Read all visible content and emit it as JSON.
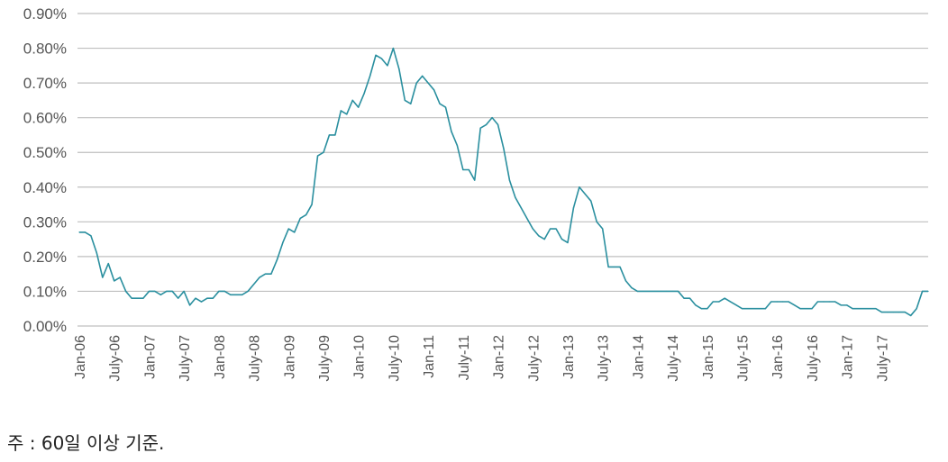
{
  "note": "주 : 60일 이상 기준.",
  "colors": {
    "line": "#2a8f9f",
    "grid": "#bfbfbf",
    "text": "#555555"
  },
  "chart_data": {
    "type": "line",
    "title": "",
    "xlabel": "",
    "ylabel": "",
    "ylim": [
      0,
      0.9
    ],
    "y_unit": "%",
    "y_ticks": [
      "0.00%",
      "0.10%",
      "0.20%",
      "0.30%",
      "0.40%",
      "0.50%",
      "0.60%",
      "0.70%",
      "0.80%",
      "0.90%"
    ],
    "x_ticks": [
      "Jan-06",
      "July-06",
      "Jan-07",
      "July-07",
      "Jan-08",
      "July-08",
      "Jan-09",
      "July-09",
      "Jan-10",
      "July-10",
      "Jan-11",
      "July-11",
      "Jan-12",
      "July-12",
      "Jan-13",
      "July-13",
      "Jan-14",
      "July-14",
      "Jan-15",
      "July-15",
      "Jan-16",
      "July-16",
      "Jan-17",
      "July-17"
    ],
    "grid": true,
    "legend": "none",
    "x_start": "Jan-06",
    "x_frequency": "monthly",
    "series": [
      {
        "values": [
          0.27,
          0.27,
          0.26,
          0.21,
          0.14,
          0.18,
          0.13,
          0.14,
          0.1,
          0.08,
          0.08,
          0.08,
          0.1,
          0.1,
          0.09,
          0.1,
          0.1,
          0.08,
          0.1,
          0.06,
          0.08,
          0.07,
          0.08,
          0.08,
          0.1,
          0.1,
          0.09,
          0.09,
          0.09,
          0.1,
          0.12,
          0.14,
          0.15,
          0.15,
          0.19,
          0.24,
          0.28,
          0.27,
          0.31,
          0.32,
          0.35,
          0.49,
          0.5,
          0.55,
          0.55,
          0.62,
          0.61,
          0.65,
          0.63,
          0.67,
          0.72,
          0.78,
          0.77,
          0.75,
          0.8,
          0.74,
          0.65,
          0.64,
          0.7,
          0.72,
          0.7,
          0.68,
          0.64,
          0.63,
          0.56,
          0.52,
          0.45,
          0.45,
          0.42,
          0.57,
          0.58,
          0.6,
          0.58,
          0.51,
          0.42,
          0.37,
          0.34,
          0.31,
          0.28,
          0.26,
          0.25,
          0.28,
          0.28,
          0.25,
          0.24,
          0.34,
          0.4,
          0.38,
          0.36,
          0.3,
          0.28,
          0.17,
          0.17,
          0.17,
          0.13,
          0.11,
          0.1,
          0.1,
          0.1,
          0.1,
          0.1,
          0.1,
          0.1,
          0.1,
          0.08,
          0.08,
          0.06,
          0.05,
          0.05,
          0.07,
          0.07,
          0.08,
          0.07,
          0.06,
          0.05,
          0.05,
          0.05,
          0.05,
          0.05,
          0.07,
          0.07,
          0.07,
          0.07,
          0.06,
          0.05,
          0.05,
          0.05,
          0.07,
          0.07,
          0.07,
          0.07,
          0.06,
          0.06,
          0.05,
          0.05,
          0.05,
          0.05,
          0.05,
          0.04,
          0.04,
          0.04,
          0.04,
          0.04,
          0.03,
          0.05,
          0.1,
          0.1
        ]
      }
    ]
  }
}
